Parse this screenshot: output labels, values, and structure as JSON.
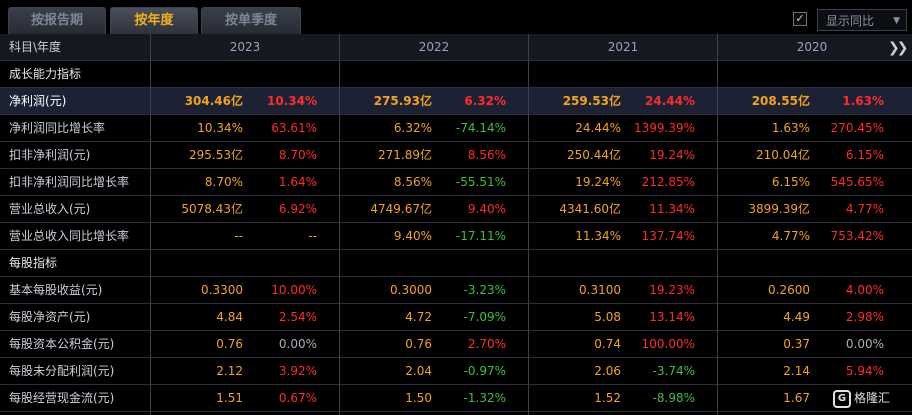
{
  "tabs": [
    "按报告期",
    "按年度",
    "按单季度"
  ],
  "active_tab": 1,
  "toggle": {
    "label": "显示同比",
    "checked": true
  },
  "header": {
    "label": "科目\\年度",
    "years": [
      "2023",
      "2022",
      "2021",
      "2020"
    ]
  },
  "sections": [
    {
      "title": "成长能力指标",
      "rows": [
        {
          "label": "净利润(元)",
          "highlight": true,
          "cells": [
            [
              "304.46亿",
              "10.34%",
              "red"
            ],
            [
              "275.93亿",
              "6.32%",
              "red"
            ],
            [
              "259.53亿",
              "24.44%",
              "red"
            ],
            [
              "208.55亿",
              "1.63%",
              "red"
            ]
          ]
        },
        {
          "label": "净利润同比增长率",
          "cells": [
            [
              "10.34%",
              "63.61%",
              "red"
            ],
            [
              "6.32%",
              "-74.14%",
              "green"
            ],
            [
              "24.44%",
              "1399.39%",
              "red"
            ],
            [
              "1.63%",
              "270.45%",
              "red"
            ]
          ]
        },
        {
          "label": "扣非净利润(元)",
          "cells": [
            [
              "295.53亿",
              "8.70%",
              "red"
            ],
            [
              "271.89亿",
              "8.56%",
              "red"
            ],
            [
              "250.44亿",
              "19.24%",
              "red"
            ],
            [
              "210.04亿",
              "6.15%",
              "red"
            ]
          ]
        },
        {
          "label": "扣非净利润同比增长率",
          "cells": [
            [
              "8.70%",
              "1.64%",
              "red"
            ],
            [
              "8.56%",
              "-55.51%",
              "green"
            ],
            [
              "19.24%",
              "212.85%",
              "red"
            ],
            [
              "6.15%",
              "545.65%",
              "red"
            ]
          ]
        },
        {
          "label": "营业总收入(元)",
          "cells": [
            [
              "5078.43亿",
              "6.92%",
              "red"
            ],
            [
              "4749.67亿",
              "9.40%",
              "red"
            ],
            [
              "4341.60亿",
              "11.34%",
              "red"
            ],
            [
              "3899.39亿",
              "4.77%",
              "red"
            ]
          ]
        },
        {
          "label": "营业总收入同比增长率",
          "cells": [
            [
              "--",
              "--",
              "orange"
            ],
            [
              "9.40%",
              "-17.11%",
              "green"
            ],
            [
              "11.34%",
              "137.74%",
              "red"
            ],
            [
              "4.77%",
              "753.42%",
              "red"
            ]
          ]
        }
      ]
    },
    {
      "title": "每股指标",
      "rows": [
        {
          "label": "基本每股收益(元)",
          "cells": [
            [
              "0.3300",
              "10.00%",
              "red"
            ],
            [
              "0.3000",
              "-3.23%",
              "green"
            ],
            [
              "0.3100",
              "19.23%",
              "red"
            ],
            [
              "0.2600",
              "4.00%",
              "red"
            ]
          ]
        },
        {
          "label": "每股净资产(元)",
          "cells": [
            [
              "4.84",
              "2.54%",
              "red"
            ],
            [
              "4.72",
              "-7.09%",
              "green"
            ],
            [
              "5.08",
              "13.14%",
              "red"
            ],
            [
              "4.49",
              "2.98%",
              "red"
            ]
          ]
        },
        {
          "label": "每股资本公积金(元)",
          "cells": [
            [
              "0.76",
              "0.00%",
              "gray"
            ],
            [
              "0.76",
              "2.70%",
              "red"
            ],
            [
              "0.74",
              "100.00%",
              "red"
            ],
            [
              "0.37",
              "0.00%",
              "gray"
            ]
          ]
        },
        {
          "label": "每股未分配利润(元)",
          "cells": [
            [
              "2.12",
              "3.92%",
              "red"
            ],
            [
              "2.04",
              "-0.97%",
              "green"
            ],
            [
              "2.06",
              "-3.74%",
              "green"
            ],
            [
              "2.14",
              "5.94%",
              "red"
            ]
          ]
        },
        {
          "label": "每股经营现金流(元)",
          "cells": [
            [
              "1.51",
              "0.67%",
              "red"
            ],
            [
              "1.50",
              "-1.32%",
              "green"
            ],
            [
              "1.52",
              "-8.98%",
              "green"
            ],
            [
              "1.67",
              "",
              ""
            ]
          ]
        }
      ]
    }
  ],
  "logo_text": "格隆汇",
  "icons": {
    "more": "double-chevron-right-icon",
    "check": "checkmark-icon",
    "logo": "gelonghui-logo-icon",
    "dropdown": "chevron-down-icon"
  }
}
